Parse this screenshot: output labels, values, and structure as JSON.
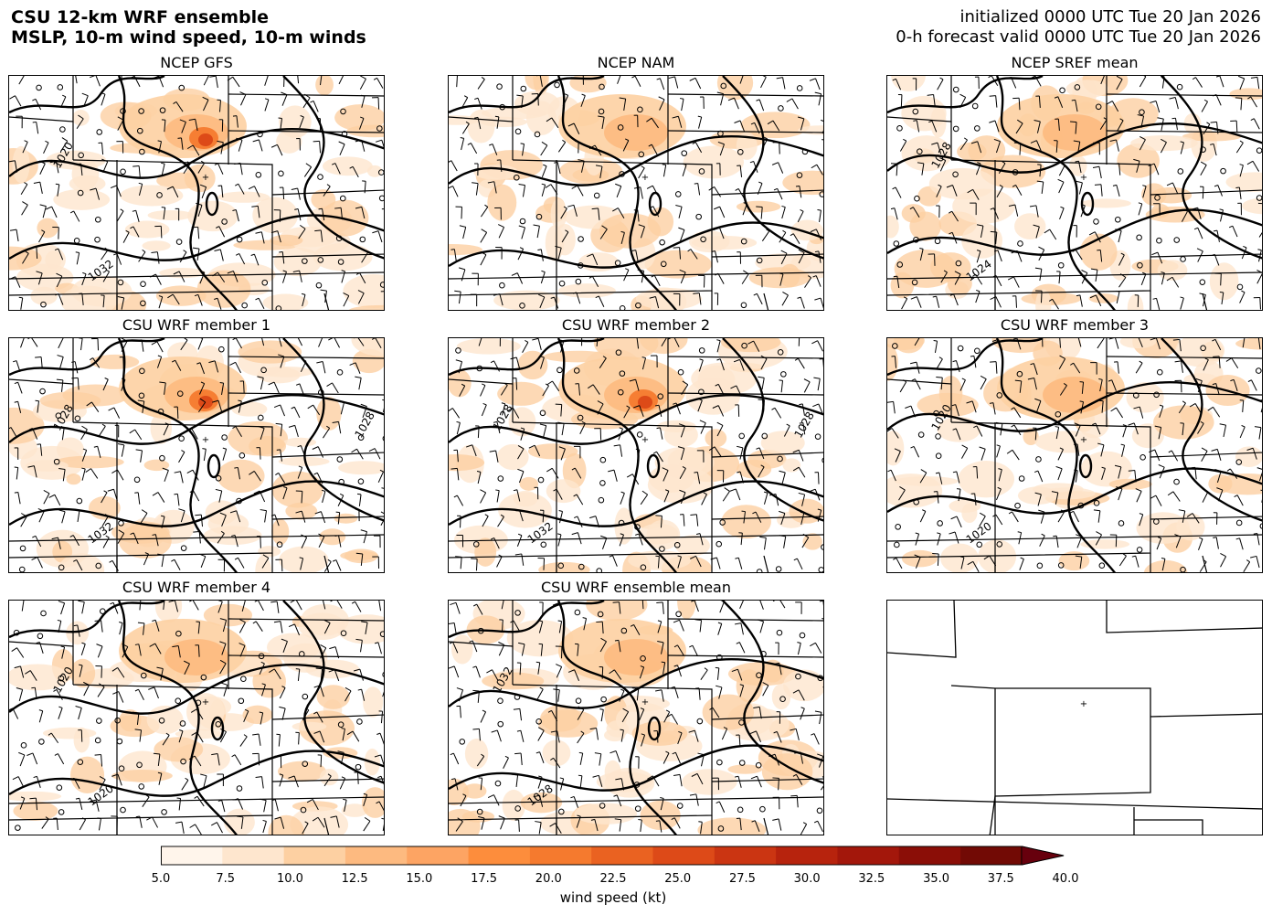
{
  "header": {
    "title_line1": "CSU 12-km WRF ensemble",
    "title_line2": "MSLP, 10-m wind speed, 10-m winds",
    "init_line": "initialized 0000 UTC Tue 20 Jan 2026",
    "valid_line": "0-h forecast valid 0000 UTC Tue 20 Jan 2026"
  },
  "panels": [
    {
      "title": "NCEP GFS",
      "contour_labels": [
        "1032",
        "1020"
      ],
      "wind_max_kt": 25
    },
    {
      "title": "NCEP NAM",
      "contour_labels": [],
      "wind_max_kt": 17.5
    },
    {
      "title": "NCEP SREF mean",
      "contour_labels": [
        "1024",
        "1028"
      ],
      "wind_max_kt": 17.5
    },
    {
      "title": "CSU WRF member 1",
      "contour_labels": [
        "1032",
        "1028",
        "1028"
      ],
      "wind_max_kt": 22.5
    },
    {
      "title": "CSU WRF member 2",
      "contour_labels": [
        "1032",
        "1028",
        "1028"
      ],
      "wind_max_kt": 22.5
    },
    {
      "title": "CSU WRF member 3",
      "contour_labels": [
        "1020",
        "1020"
      ],
      "wind_max_kt": 17.5
    },
    {
      "title": "CSU WRF member 4",
      "contour_labels": [
        "1020",
        "1020"
      ],
      "wind_max_kt": 17.5
    },
    {
      "title": "CSU WRF ensemble mean",
      "contour_labels": [
        "1028",
        "1032"
      ],
      "wind_max_kt": 17.5
    },
    {
      "title": "",
      "contour_labels": [],
      "wind_max_kt": 0
    }
  ],
  "colorbar": {
    "label": "wind speed (kt)",
    "ticks": [
      "5.0",
      "7.5",
      "10.0",
      "12.5",
      "15.0",
      "17.5",
      "20.0",
      "22.5",
      "25.0",
      "27.5",
      "30.0",
      "32.5",
      "35.0",
      "37.5",
      "40.0"
    ],
    "colors": [
      "#fff5eb",
      "#fee6ce",
      "#fdd0a2",
      "#fdba80",
      "#fda463",
      "#fd8d3c",
      "#f57a2e",
      "#ea6221",
      "#dd4a18",
      "#cb3512",
      "#b7230d",
      "#a3170b",
      "#8b0e07",
      "#720a05"
    ]
  }
}
